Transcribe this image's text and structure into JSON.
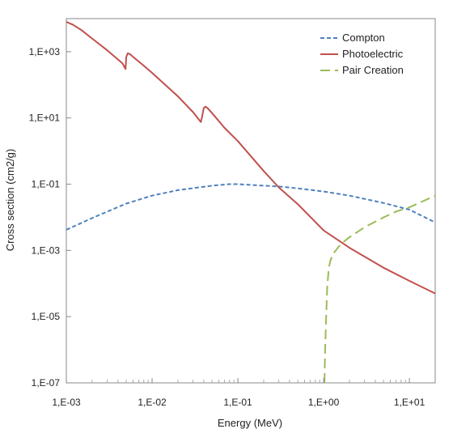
{
  "chart_data": {
    "type": "line",
    "title": "",
    "xlabel": "Energy (MeV)",
    "ylabel": "Cross section (cm2/g)",
    "x_scale": "log",
    "y_scale": "log",
    "xlim": [
      0.001,
      20
    ],
    "ylim": [
      1e-07,
      10000
    ],
    "x_ticks": [
      {
        "value": 0.001,
        "label": "1,E-03"
      },
      {
        "value": 0.01,
        "label": "1,E-02"
      },
      {
        "value": 0.1,
        "label": "1,E-01"
      },
      {
        "value": 1,
        "label": "1,E+00"
      },
      {
        "value": 10,
        "label": "1,E+01"
      }
    ],
    "y_ticks": [
      {
        "value": 1e-07,
        "label": "1,E-07"
      },
      {
        "value": 1e-05,
        "label": "1,E-05"
      },
      {
        "value": 0.001,
        "label": "1,E-03"
      },
      {
        "value": 0.1,
        "label": "1,E-01"
      },
      {
        "value": 10,
        "label": "1,E+01"
      },
      {
        "value": 1000,
        "label": "1,E+03"
      }
    ],
    "grid": false,
    "legend_position": "top-right",
    "series": [
      {
        "name": "Compton",
        "color": "#4f81bd",
        "style": "dotted",
        "x": [
          0.001,
          0.002,
          0.005,
          0.01,
          0.02,
          0.05,
          0.08,
          0.1,
          0.2,
          0.3,
          0.5,
          1,
          2,
          5,
          10,
          20
        ],
        "y": [
          0.0042,
          0.0095,
          0.026,
          0.045,
          0.066,
          0.09,
          0.1,
          0.1,
          0.09,
          0.085,
          0.075,
          0.06,
          0.045,
          0.027,
          0.017,
          0.007
        ]
      },
      {
        "name": "Photoelectric",
        "color": "#c0504d",
        "style": "solid",
        "x": [
          0.001,
          0.0012,
          0.0015,
          0.002,
          0.003,
          0.0045,
          0.0049,
          0.005,
          0.0052,
          0.0055,
          0.006,
          0.008,
          0.01,
          0.02,
          0.03,
          0.037,
          0.038,
          0.04,
          0.042,
          0.045,
          0.05,
          0.07,
          0.1,
          0.2,
          0.3,
          0.5,
          1,
          2,
          5,
          10,
          20
        ],
        "y": [
          8000,
          6500,
          4500,
          2500,
          1100,
          450,
          300,
          700,
          900,
          850,
          700,
          380,
          230,
          45,
          15,
          7.5,
          10,
          20,
          22,
          19,
          14,
          5,
          2,
          0.25,
          0.08,
          0.025,
          0.004,
          0.0012,
          0.0003,
          0.00012,
          5e-05
        ]
      },
      {
        "name": "Pair Creation",
        "color": "#9bbb59",
        "style": "dashed",
        "x": [
          1.022,
          1.04,
          1.07,
          1.1,
          1.15,
          1.2,
          1.3,
          1.5,
          1.7,
          2,
          3,
          5,
          7,
          10,
          20
        ],
        "y": [
          1e-07,
          1e-06,
          1e-05,
          8e-05,
          0.0003,
          0.0005,
          0.0008,
          0.0013,
          0.0018,
          0.0025,
          0.005,
          0.01,
          0.015,
          0.02,
          0.045
        ]
      }
    ]
  }
}
